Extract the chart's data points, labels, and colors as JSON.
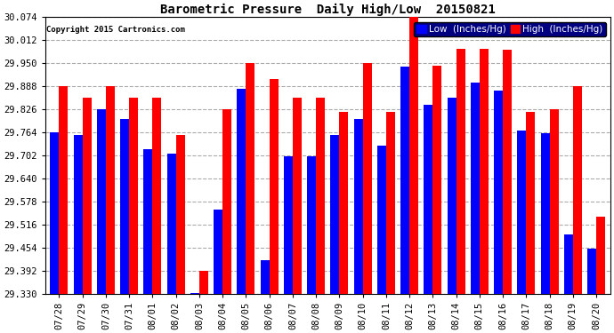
{
  "title": "Barometric Pressure  Daily High/Low  20150821",
  "copyright": "Copyright 2015 Cartronics.com",
  "legend_low": "Low  (Inches/Hg)",
  "legend_high": "High  (Inches/Hg)",
  "dates": [
    "07/28",
    "07/29",
    "07/30",
    "07/31",
    "08/01",
    "08/02",
    "08/03",
    "08/04",
    "08/05",
    "08/06",
    "08/07",
    "08/08",
    "08/09",
    "08/10",
    "08/11",
    "08/12",
    "08/13",
    "08/14",
    "08/15",
    "08/16",
    "08/17",
    "08/18",
    "08/19",
    "08/20"
  ],
  "low": [
    29.764,
    29.756,
    29.826,
    29.8,
    29.718,
    29.708,
    29.332,
    29.556,
    29.882,
    29.42,
    29.7,
    29.7,
    29.756,
    29.8,
    29.728,
    29.942,
    29.838,
    29.858,
    29.898,
    29.876,
    29.768,
    29.762,
    29.49,
    29.452
  ],
  "high": [
    29.888,
    29.858,
    29.888,
    29.858,
    29.858,
    29.758,
    29.392,
    29.826,
    29.95,
    29.908,
    29.858,
    29.858,
    29.82,
    29.95,
    29.82,
    30.074,
    29.944,
    29.988,
    29.988,
    29.986,
    29.82,
    29.826,
    29.888,
    29.538
  ],
  "ylim_min": 29.33,
  "ylim_max": 30.074,
  "yticks": [
    29.33,
    29.392,
    29.454,
    29.516,
    29.578,
    29.64,
    29.702,
    29.764,
    29.826,
    29.888,
    29.95,
    30.012,
    30.074
  ],
  "bar_width": 0.38,
  "low_color": "#0000ff",
  "high_color": "#ff0000",
  "bg_color": "#ffffff",
  "grid_color": "#aaaaaa",
  "title_fontsize": 10,
  "tick_fontsize": 7.5,
  "legend_fontsize": 7.5,
  "copyright_fontsize": 6.5
}
